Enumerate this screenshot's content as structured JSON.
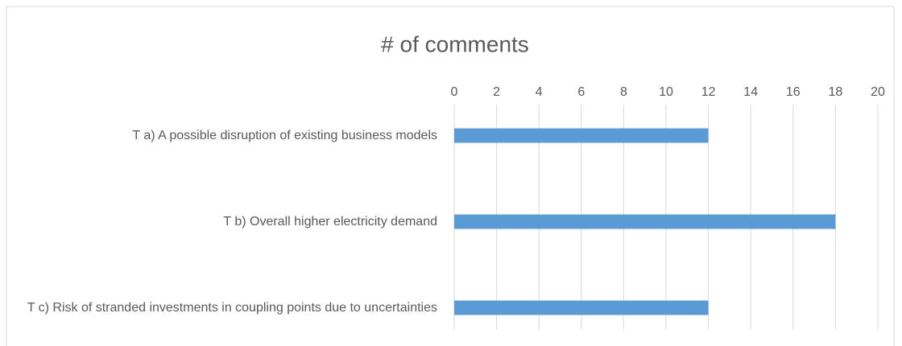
{
  "chart_data": {
    "type": "bar",
    "orientation": "horizontal",
    "title": "# of comments",
    "categories": [
      "T a) A possible disruption of existing business models",
      "T b) Overall higher electricity demand",
      "T c) Risk of stranded investments in coupling points due to uncertainties"
    ],
    "values": [
      12,
      18,
      12
    ],
    "color": "#5b9bd5",
    "xlim": [
      0,
      20
    ],
    "xticks": [
      0,
      2,
      4,
      6,
      8,
      10,
      12,
      14,
      16,
      18,
      20
    ],
    "grid": true
  }
}
